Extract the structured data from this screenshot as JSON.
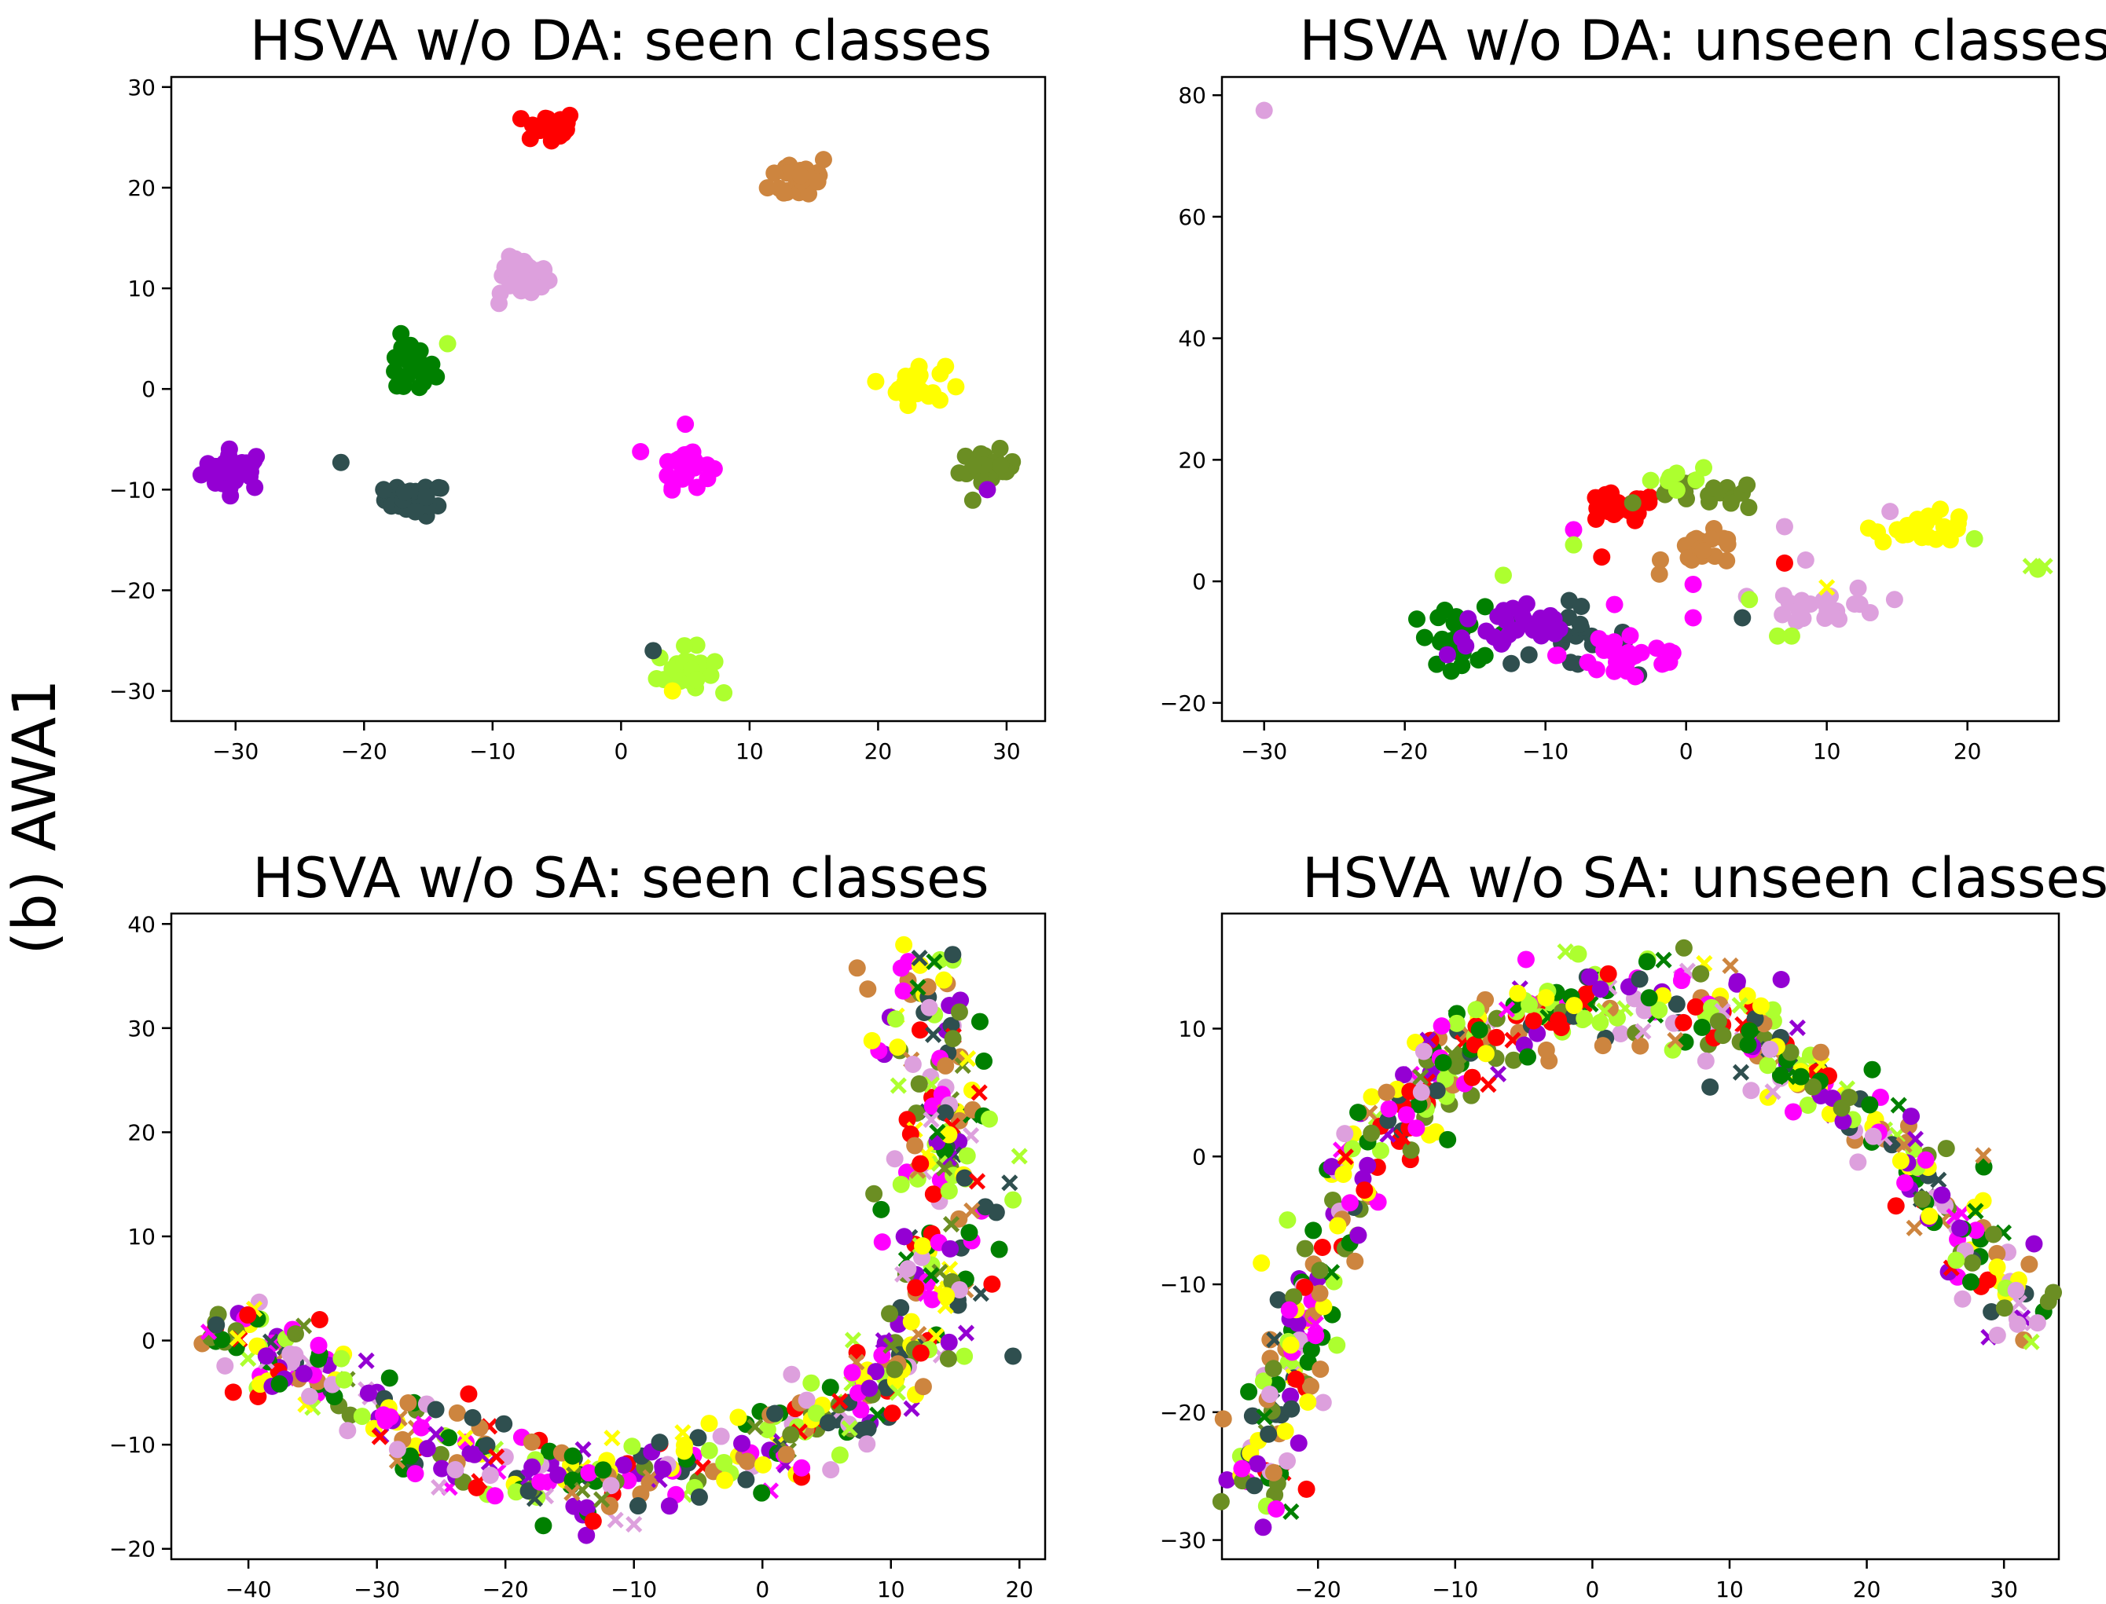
{
  "figure": {
    "row_label": "(b) AWA1"
  },
  "colors": {
    "purple": "#9400d3",
    "darkslate": "#2f4f4f",
    "green": "#008000",
    "plum": "#dda0dd",
    "red": "#ff0000",
    "peru": "#cd853f",
    "yellow": "#ffff00",
    "olive": "#6b8e23",
    "magenta": "#ff00ff",
    "lime": "#adff2f"
  },
  "chart_data": [
    {
      "type": "scatter",
      "title": "HSVA w/o DA: seen classes",
      "xlim": [
        -35,
        33
      ],
      "ylim": [
        -33,
        31
      ],
      "xticks": [
        -30,
        -20,
        -10,
        0,
        10,
        20,
        30
      ],
      "yticks": [
        -30,
        -20,
        -10,
        0,
        10,
        20,
        30
      ],
      "clusters": [
        {
          "color": "purple",
          "cx": -30,
          "cy": -8,
          "sx": 1.3,
          "sy": 1.0,
          "n": 30
        },
        {
          "color": "darkslate",
          "cx": -16,
          "cy": -11,
          "sx": 1.2,
          "sy": 0.8,
          "n": 30
        },
        {
          "color": "green",
          "cx": -16.5,
          "cy": 2,
          "sx": 1.0,
          "sy": 1.4,
          "n": 28
        },
        {
          "color": "plum",
          "cx": -7.5,
          "cy": 11,
          "sx": 1.0,
          "sy": 1.0,
          "n": 26
        },
        {
          "color": "red",
          "cx": -5.5,
          "cy": 26,
          "sx": 1.0,
          "sy": 0.8,
          "n": 28
        },
        {
          "color": "peru",
          "cx": 14,
          "cy": 21,
          "sx": 1.2,
          "sy": 1.2,
          "n": 26
        },
        {
          "color": "magenta",
          "cx": 5,
          "cy": -7.5,
          "sx": 1.0,
          "sy": 1.1,
          "n": 26
        },
        {
          "color": "lime",
          "cx": 5,
          "cy": -28,
          "sx": 1.1,
          "sy": 1.1,
          "n": 26
        },
        {
          "color": "yellow",
          "cx": 23,
          "cy": 0.5,
          "sx": 1.1,
          "sy": 1.0,
          "n": 28
        },
        {
          "color": "olive",
          "cx": 28.5,
          "cy": -8,
          "sx": 1.1,
          "sy": 0.9,
          "n": 28
        }
      ],
      "points": [
        {
          "x": -21.8,
          "y": -7.3,
          "color": "darkslate",
          "marker": "o"
        },
        {
          "x": -9.5,
          "y": 8.5,
          "color": "plum",
          "marker": "o"
        },
        {
          "x": -13.5,
          "y": 4.5,
          "color": "lime",
          "marker": "o"
        },
        {
          "x": 2.5,
          "y": -26,
          "color": "darkslate",
          "marker": "o"
        },
        {
          "x": 4,
          "y": -30,
          "color": "yellow",
          "marker": "o"
        },
        {
          "x": 28.5,
          "y": -10,
          "color": "purple",
          "marker": "o"
        },
        {
          "x": 5,
          "y": -3.5,
          "color": "magenta",
          "marker": "o"
        }
      ]
    },
    {
      "type": "scatter",
      "title": "HSVA w/o DA: unseen classes",
      "xlim": [
        -33,
        26.5
      ],
      "ylim": [
        -23,
        83
      ],
      "xticks": [
        -30,
        -20,
        -10,
        0,
        10,
        20
      ],
      "yticks": [
        -20,
        0,
        20,
        40,
        60,
        80
      ],
      "clusters": [
        {
          "color": "green",
          "cx": -16,
          "cy": -9,
          "sx": 1.8,
          "sy": 2.2,
          "n": 24
        },
        {
          "color": "darkslate",
          "cx": -9,
          "cy": -9,
          "sx": 2.5,
          "sy": 2.5,
          "n": 22
        },
        {
          "color": "purple",
          "cx": -12,
          "cy": -8,
          "sx": 2.5,
          "sy": 2.2,
          "n": 26
        },
        {
          "color": "magenta",
          "cx": -4,
          "cy": -12,
          "sx": 2.5,
          "sy": 2.5,
          "n": 30
        },
        {
          "color": "red",
          "cx": -5,
          "cy": 12,
          "sx": 1.5,
          "sy": 1.2,
          "n": 24
        },
        {
          "color": "olive",
          "cx": 1.5,
          "cy": 14,
          "sx": 2.0,
          "sy": 1.2,
          "n": 20
        },
        {
          "color": "lime",
          "cx": -1,
          "cy": 17,
          "sx": 1.5,
          "sy": 1.2,
          "n": 8
        },
        {
          "color": "peru",
          "cx": 1.5,
          "cy": 5,
          "sx": 1.5,
          "sy": 1.5,
          "n": 20
        },
        {
          "color": "plum",
          "cx": 10,
          "cy": -4,
          "sx": 2.0,
          "sy": 1.5,
          "n": 26
        },
        {
          "color": "yellow",
          "cx": 17,
          "cy": 9,
          "sx": 1.8,
          "sy": 1.2,
          "n": 26
        }
      ],
      "points": [
        {
          "x": -30,
          "y": 77.5,
          "color": "plum",
          "marker": "o"
        },
        {
          "x": 24.5,
          "y": 2.5,
          "color": "lime",
          "marker": "x"
        },
        {
          "x": 25.5,
          "y": 2.5,
          "color": "lime",
          "marker": "x"
        },
        {
          "x": 25,
          "y": 2.0,
          "color": "lime",
          "marker": "o"
        },
        {
          "x": 20.5,
          "y": 7,
          "color": "lime",
          "marker": "o"
        },
        {
          "x": 7,
          "y": 9,
          "color": "plum",
          "marker": "o"
        },
        {
          "x": 8.5,
          "y": 3.5,
          "color": "plum",
          "marker": "o"
        },
        {
          "x": 6.5,
          "y": -9,
          "color": "lime",
          "marker": "o"
        },
        {
          "x": 7.5,
          "y": -9,
          "color": "lime",
          "marker": "o"
        },
        {
          "x": 14.5,
          "y": 11.5,
          "color": "plum",
          "marker": "o"
        },
        {
          "x": -8,
          "y": 8.5,
          "color": "magenta",
          "marker": "o"
        },
        {
          "x": -8,
          "y": 6,
          "color": "lime",
          "marker": "o"
        },
        {
          "x": -6,
          "y": 4,
          "color": "red",
          "marker": "o"
        },
        {
          "x": 0.5,
          "y": -6,
          "color": "magenta",
          "marker": "o"
        },
        {
          "x": 0.5,
          "y": -0.5,
          "color": "magenta",
          "marker": "o"
        },
        {
          "x": -13,
          "y": 1,
          "color": "lime",
          "marker": "o"
        },
        {
          "x": 4,
          "y": -6,
          "color": "darkslate",
          "marker": "o"
        },
        {
          "x": 4.5,
          "y": -3,
          "color": "lime",
          "marker": "o"
        },
        {
          "x": 7,
          "y": 3,
          "color": "red",
          "marker": "o"
        },
        {
          "x": 10,
          "y": -1,
          "color": "yellow",
          "marker": "x"
        }
      ]
    },
    {
      "type": "scatter",
      "title": "HSVA w/o SA: seen classes",
      "xlim": [
        -46,
        22
      ],
      "ylim": [
        -21,
        41
      ],
      "xticks": [
        -40,
        -30,
        -20,
        -10,
        0,
        10,
        20
      ],
      "yticks": [
        -20,
        -10,
        0,
        10,
        20,
        30,
        40
      ],
      "curve": [
        [
          -43,
          1.5
        ],
        [
          -35,
          -3
        ],
        [
          -25,
          -10
        ],
        [
          -15,
          -15
        ],
        [
          -5,
          -12
        ],
        [
          5,
          -8
        ],
        [
          12,
          -2
        ],
        [
          14,
          12
        ],
        [
          14,
          25
        ],
        [
          12,
          37
        ]
      ],
      "spread": 2.0,
      "n_points": 560,
      "x_fraction": 0.18,
      "points": [
        {
          "x": -42.5,
          "y": 1.5,
          "color": "darkslate",
          "marker": "o"
        },
        {
          "x": 11,
          "y": 38,
          "color": "yellow",
          "marker": "o"
        },
        {
          "x": 19.5,
          "y": -1.5,
          "color": "darkslate",
          "marker": "o"
        },
        {
          "x": 19.5,
          "y": 13.5,
          "color": "lime",
          "marker": "o"
        }
      ]
    },
    {
      "type": "scatter",
      "title": "HSVA w/o SA: unseen classes",
      "xlim": [
        -27,
        34
      ],
      "ylim": [
        -31.5,
        19
      ],
      "xticks": [
        -20,
        -10,
        0,
        10,
        20,
        30
      ],
      "yticks": [
        -30,
        -20,
        -10,
        0,
        10
      ],
      "curve": [
        [
          -24,
          -28
        ],
        [
          -22,
          -15
        ],
        [
          -18,
          -3
        ],
        [
          -12,
          6
        ],
        [
          -5,
          11
        ],
        [
          2,
          13
        ],
        [
          10,
          11
        ],
        [
          18,
          5
        ],
        [
          25,
          -3
        ],
        [
          32,
          -14
        ]
      ],
      "spread": 1.6,
      "n_points": 560,
      "x_fraction": 0.16,
      "points": [
        {
          "x": -24,
          "y": -29,
          "color": "purple",
          "marker": "o"
        },
        {
          "x": 32,
          "y": -14.5,
          "color": "lime",
          "marker": "x"
        }
      ]
    }
  ]
}
